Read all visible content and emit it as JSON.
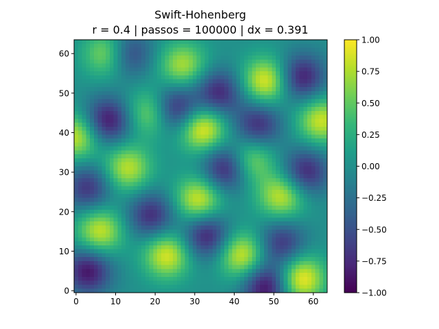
{
  "chart_data": {
    "type": "heatmap",
    "title": "Swift-Hohenberg",
    "subtitle": "r = 0.4 | passos = 100000 | dx = 0.391",
    "xlabel": "",
    "ylabel": "",
    "xlim": [
      -0.5,
      63.5
    ],
    "ylim": [
      -0.5,
      63.5
    ],
    "x_ticks": [
      "0",
      "10",
      "20",
      "30",
      "40",
      "50",
      "60"
    ],
    "y_ticks": [
      "0",
      "10",
      "20",
      "30",
      "40",
      "50",
      "60"
    ],
    "colorbar": {
      "colormap": "viridis",
      "range": [
        -1.0,
        1.0
      ],
      "ticks": [
        "−1.00",
        "−0.75",
        "−0.50",
        "−0.25",
        "0.00",
        "0.25",
        "0.50",
        "0.75",
        "1.00"
      ]
    },
    "grid": false,
    "approx_features": {
      "maxima": [
        {
          "x": 32,
          "y": 41,
          "value": 1.0
        },
        {
          "x": 48,
          "y": 53,
          "value": 0.95
        },
        {
          "x": 57,
          "y": 3,
          "value": 1.0
        },
        {
          "x": 42,
          "y": 9,
          "value": 0.9
        },
        {
          "x": 31,
          "y": 23,
          "value": 0.9
        },
        {
          "x": 6,
          "y": 15,
          "value": 0.85
        },
        {
          "x": 23,
          "y": 9,
          "value": 0.9
        },
        {
          "x": 0,
          "y": 39,
          "value": 0.85
        },
        {
          "x": 8,
          "y": 60,
          "value": 0.75
        },
        {
          "x": 27,
          "y": 57,
          "value": 0.75
        },
        {
          "x": 13,
          "y": 31,
          "value": 0.8
        },
        {
          "x": 62,
          "y": 43,
          "value": 0.85
        },
        {
          "x": 52,
          "y": 24,
          "value": 0.85
        },
        {
          "x": 19,
          "y": 45,
          "value": 0.7
        },
        {
          "x": 44,
          "y": 33,
          "value": 0.7
        }
      ],
      "minima": [
        {
          "x": 8,
          "y": 43,
          "value": -0.9
        },
        {
          "x": 25,
          "y": 46,
          "value": -0.9
        },
        {
          "x": 38,
          "y": 31,
          "value": -0.9
        },
        {
          "x": 3,
          "y": 5,
          "value": -0.9
        },
        {
          "x": 48,
          "y": 1,
          "value": -0.95
        },
        {
          "x": 57,
          "y": 54,
          "value": -0.85
        },
        {
          "x": 3,
          "y": 26,
          "value": -0.7
        },
        {
          "x": 19,
          "y": 19,
          "value": -0.75
        },
        {
          "x": 33,
          "y": 14,
          "value": -0.85
        },
        {
          "x": 58,
          "y": 30,
          "value": -0.8
        },
        {
          "x": 52,
          "y": 12,
          "value": -0.7
        },
        {
          "x": 36,
          "y": 50,
          "value": -0.8
        },
        {
          "x": 46,
          "y": 42,
          "value": -0.75
        },
        {
          "x": 13,
          "y": 60,
          "value": -0.7
        }
      ]
    }
  }
}
